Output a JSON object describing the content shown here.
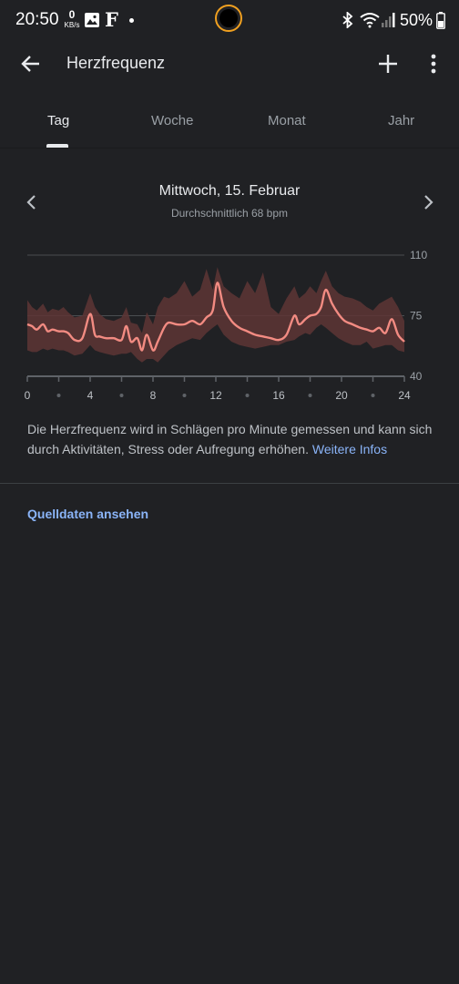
{
  "status_bar": {
    "time": "20:50",
    "net_speed": "0",
    "net_unit": "KB/s",
    "app_letter": "F",
    "battery": "50%"
  },
  "app_bar": {
    "title": "Herzfrequenz",
    "back_icon": "arrow-back-icon",
    "add_icon": "plus-icon",
    "more_icon": "more-vert-icon"
  },
  "tabs": [
    {
      "label": "Tag",
      "active": true
    },
    {
      "label": "Woche",
      "active": false
    },
    {
      "label": "Monat",
      "active": false
    },
    {
      "label": "Jahr",
      "active": false
    }
  ],
  "summary": {
    "date": "Mittwoch, 15. Februar",
    "average": "Durchschnittlich 68 bpm"
  },
  "chart_data": {
    "type": "area",
    "xlim": [
      0,
      24
    ],
    "ylim": [
      40,
      110
    ],
    "x_ticks": [
      "0",
      "4",
      "8",
      "12",
      "16",
      "20",
      "24"
    ],
    "y_ticks": [
      "110",
      "75",
      "40"
    ],
    "gridlines": [
      110,
      75,
      40
    ],
    "colors": {
      "line": "#f28b82",
      "band": "#5e3535"
    },
    "series": [
      {
        "x": [
          0,
          0.3,
          0.6,
          1,
          1.3,
          1.6,
          2,
          2.3,
          2.6,
          3,
          3.5,
          4,
          4.3,
          4.6,
          5,
          5.5,
          6,
          6.3,
          6.6,
          7,
          7.3,
          7.6,
          8,
          8.3,
          8.7,
          9,
          9.5,
          10,
          10.5,
          11,
          11.4,
          11.8,
          12.1,
          12.5,
          13,
          13.5,
          14,
          14.5,
          15,
          15.5,
          16,
          16.5,
          17,
          17.3,
          17.7,
          18,
          18.4,
          18.7,
          19,
          19.4,
          19.8,
          20.2,
          20.7,
          21.2,
          21.6,
          22,
          22.4,
          22.8,
          23.2,
          23.6,
          24
        ],
        "min": [
          55,
          54,
          54,
          56,
          55,
          56,
          55,
          55,
          54,
          52,
          53,
          58,
          55,
          54,
          53,
          52,
          53,
          53,
          54,
          50,
          48,
          50,
          50,
          48,
          52,
          55,
          58,
          60,
          62,
          61,
          65,
          68,
          70,
          64,
          60,
          58,
          57,
          56,
          57,
          58,
          58,
          60,
          61,
          63,
          65,
          64,
          68,
          70,
          68,
          65,
          62,
          60,
          58,
          58,
          60,
          56,
          57,
          58,
          58,
          55,
          54
        ],
        "avg": [
          70,
          69,
          67,
          70,
          66,
          67,
          66,
          66,
          65,
          61,
          62,
          76,
          64,
          63,
          62,
          62,
          61,
          69,
          60,
          62,
          55,
          64,
          55,
          60,
          68,
          71,
          70,
          70,
          72,
          70,
          74,
          78,
          94,
          80,
          72,
          68,
          66,
          64,
          63,
          62,
          61,
          64,
          75,
          70,
          73,
          75,
          76,
          80,
          90,
          82,
          76,
          72,
          70,
          68,
          67,
          66,
          68,
          65,
          73,
          64,
          60
        ],
        "max": [
          84,
          80,
          78,
          82,
          77,
          79,
          78,
          80,
          77,
          74,
          75,
          88,
          80,
          76,
          73,
          72,
          74,
          80,
          71,
          70,
          65,
          77,
          70,
          80,
          86,
          85,
          88,
          95,
          86,
          90,
          102,
          90,
          103,
          92,
          88,
          85,
          95,
          88,
          100,
          80,
          76,
          85,
          92,
          85,
          88,
          92,
          88,
          95,
          101,
          92,
          88,
          86,
          85,
          83,
          80,
          78,
          82,
          84,
          86,
          80,
          72
        ]
      }
    ]
  },
  "description": {
    "text": "Die Herzfrequenz wird in Schlägen pro Minute gemessen und kann sich durch Aktivitäten, Stress oder Aufregung erhöhen.",
    "link": "Weitere Infos"
  },
  "source_link": "Quelldaten ansehen"
}
